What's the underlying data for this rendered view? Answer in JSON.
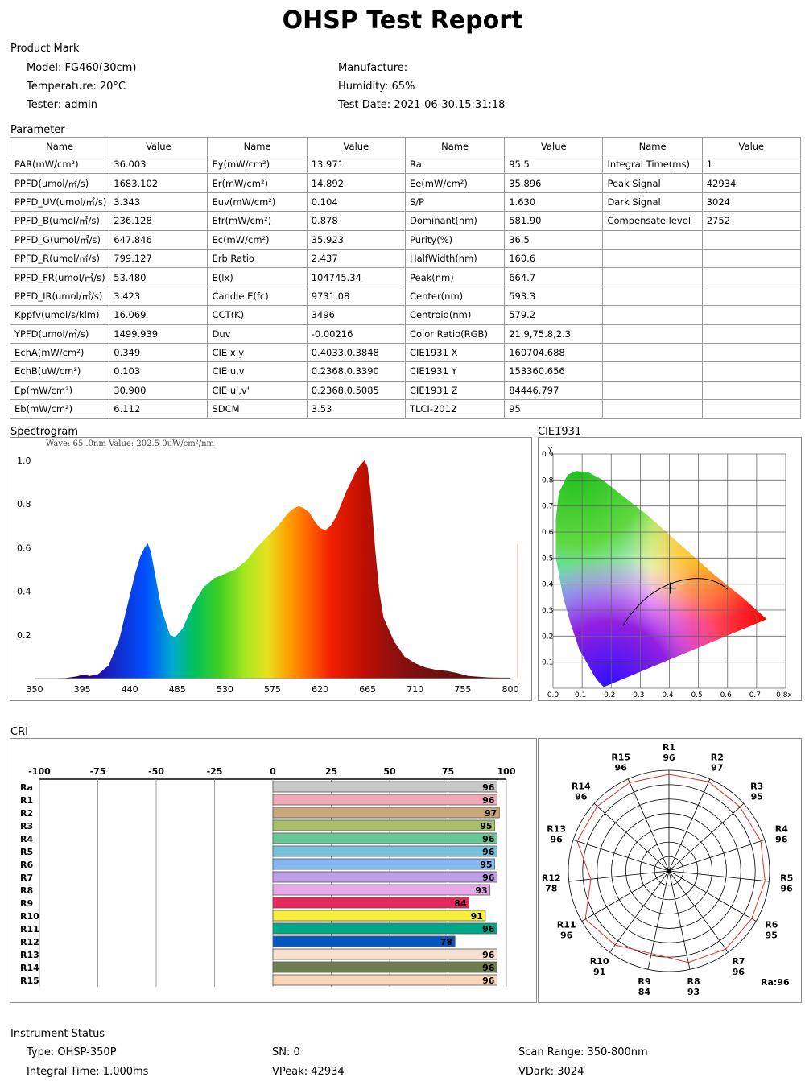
{
  "title": "OHSP Test Report",
  "product_mark": {
    "heading": "Product Mark",
    "model": "Model: FG460(30cm)",
    "manufacture": "Manufacture:",
    "temperature": "Temperature: 20°C",
    "humidity": "Humidity: 65%",
    "tester": "Tester: admin",
    "test_date": "Test Date: 2021-06-30,15:31:18"
  },
  "parameter": {
    "heading": "Parameter",
    "headers": [
      "Name",
      "Value",
      "Name",
      "Value",
      "Name",
      "Value",
      "Name",
      "Value"
    ],
    "rows": [
      [
        "PAR(mW/cm²)",
        "36.003",
        "Ey(mW/cm²)",
        "13.971",
        "Ra",
        "95.5",
        "Integral Time(ms)",
        "1"
      ],
      [
        "PPFD(umol/㎡/s)",
        "1683.102",
        "Er(mW/cm²)",
        "14.892",
        "Ee(mW/cm²)",
        "35.896",
        "Peak Signal",
        "42934"
      ],
      [
        "PPFD_UV(umol/㎡/s)",
        "3.343",
        "Euv(mW/cm²)",
        "0.104",
        "S/P",
        "1.630",
        "Dark Signal",
        "3024"
      ],
      [
        "PPFD_B(umol/㎡/s)",
        "236.128",
        "Efr(mW/cm²)",
        "0.878",
        "Dominant(nm)",
        "581.90",
        "Compensate level",
        "2752"
      ],
      [
        "PPFD_G(umol/㎡/s)",
        "647.846",
        "Ec(mW/cm²)",
        "35.923",
        "Purity(%)",
        "36.5",
        "",
        ""
      ],
      [
        "PPFD_R(umol/㎡/s)",
        "799.127",
        "Erb Ratio",
        "2.437",
        "HalfWidth(nm)",
        "160.6",
        "",
        ""
      ],
      [
        "PPFD_FR(umol/㎡/s)",
        "53.480",
        "E(lx)",
        "104745.34",
        "Peak(nm)",
        "664.7",
        "",
        ""
      ],
      [
        "PPFD_IR(umol/㎡/s)",
        "3.423",
        "Candle E(fc)",
        "9731.08",
        "Center(nm)",
        "593.3",
        "",
        ""
      ],
      [
        "Kppfv(umol/s/klm)",
        "16.069",
        "CCT(K)",
        "3496",
        "Centroid(nm)",
        "579.2",
        "",
        ""
      ],
      [
        "YPFD(umol/㎡/s)",
        "1499.939",
        "Duv",
        "-0.00216",
        "Color Ratio(RGB)",
        "21.9,75.8,2.3",
        "",
        ""
      ],
      [
        "EchA(mW/cm²)",
        "0.349",
        "CIE x,y",
        "0.4033,0.3848",
        "CIE1931 X",
        "160704.688",
        "",
        ""
      ],
      [
        "EchB(uW/cm²)",
        "0.103",
        "CIE u,v",
        "0.2368,0.3390",
        "CIE1931 Y",
        "153360.656",
        "",
        ""
      ],
      [
        "Ep(mW/cm²)",
        "30.900",
        "CIE u',v'",
        "0.2368,0.5085",
        "CIE1931 Z",
        "84446.797",
        "",
        ""
      ],
      [
        "Eb(mW/cm²)",
        "6.112",
        "SDCM",
        "3.53",
        "TLCI-2012",
        "95",
        "",
        ""
      ]
    ]
  },
  "spectrogram": {
    "heading": "Spectrogram",
    "readout": "Wave: 65 .0nm Value: 202.5 0uW/cm²/nm"
  },
  "cie": {
    "heading": "CIE1931",
    "x_axis_suffix": "x",
    "y_axis_label": "y"
  },
  "cri": {
    "heading": "CRI",
    "ra_label": "Ra:96"
  },
  "chart_data": [
    {
      "type": "area",
      "title": "Spectrogram",
      "xlabel": "",
      "ylabel": "",
      "xlim": [
        350,
        810
      ],
      "ylim": [
        0,
        1.05
      ],
      "x_ticks": [
        "350",
        "395",
        "440",
        "485",
        "530",
        "575",
        "620",
        "665",
        "710",
        "755",
        "800"
      ],
      "y_ticks": [
        "0.2",
        "0.4",
        "0.6",
        "0.8",
        "1.0"
      ],
      "x": [
        350,
        380,
        390,
        396,
        402,
        410,
        420,
        430,
        440,
        445,
        450,
        454,
        457,
        460,
        465,
        470,
        478,
        483,
        490,
        500,
        510,
        520,
        530,
        540,
        550,
        560,
        570,
        580,
        590,
        595,
        600,
        605,
        610,
        615,
        620,
        625,
        630,
        635,
        640,
        645,
        650,
        655,
        660,
        662,
        665,
        668,
        672,
        676,
        680,
        690,
        700,
        710,
        720,
        730,
        740,
        750,
        760,
        770,
        780,
        790,
        800
      ],
      "y": [
        0.0,
        0.003,
        0.01,
        0.018,
        0.012,
        0.02,
        0.06,
        0.18,
        0.38,
        0.48,
        0.56,
        0.6,
        0.62,
        0.58,
        0.45,
        0.32,
        0.2,
        0.19,
        0.23,
        0.34,
        0.42,
        0.46,
        0.48,
        0.5,
        0.54,
        0.6,
        0.65,
        0.7,
        0.76,
        0.78,
        0.79,
        0.78,
        0.76,
        0.72,
        0.69,
        0.68,
        0.7,
        0.74,
        0.8,
        0.86,
        0.91,
        0.96,
        0.99,
        1.0,
        0.97,
        0.85,
        0.6,
        0.4,
        0.28,
        0.17,
        0.1,
        0.07,
        0.05,
        0.04,
        0.035,
        0.025,
        0.012,
        0.008,
        0.005,
        0.004,
        0.004
      ],
      "grid": false
    },
    {
      "type": "bar",
      "title": "CRI",
      "categories": [
        "Ra",
        "R1",
        "R2",
        "R3",
        "R4",
        "R5",
        "R6",
        "R7",
        "R8",
        "R9",
        "R10",
        "R11",
        "R12",
        "R13",
        "R14",
        "R15"
      ],
      "values": [
        96,
        96,
        97,
        95,
        96,
        96,
        95,
        96,
        93,
        84,
        91,
        96,
        78,
        96,
        96,
        96
      ],
      "colors": [
        "#c8c8c8",
        "#f0a8b8",
        "#c8a878",
        "#a8c068",
        "#68c898",
        "#78c0d8",
        "#88b8f0",
        "#c0a0e8",
        "#e8a8e8",
        "#e8285a",
        "#f8f038",
        "#00a888",
        "#0058c0",
        "#f8e0d0",
        "#6e7c50",
        "#f8d8b8"
      ],
      "xlim": [
        -100,
        100
      ],
      "x_ticks": [
        "-100",
        "-75",
        "-50",
        "-25",
        "0",
        "25",
        "50",
        "75",
        "100"
      ]
    },
    {
      "type": "scatter",
      "title": "CIE1931",
      "xlim": [
        0,
        0.8
      ],
      "ylim": [
        0,
        0.9
      ],
      "x_ticks": [
        "0.0",
        "0.1",
        "0.2",
        "0.3",
        "0.4",
        "0.5",
        "0.6",
        "0.7",
        "0.8x"
      ],
      "y_ticks": [
        "0.1",
        "0.2",
        "0.3",
        "0.4",
        "0.5",
        "0.6",
        "0.7",
        "0.8",
        "0.9"
      ],
      "point": {
        "x": 0.4033,
        "y": 0.3848
      }
    }
  ],
  "instrument": {
    "heading": "Instrument Status",
    "type": "Type: OHSP-350P",
    "sn": "SN: 0",
    "scan_range": "Scan Range: 350-800nm",
    "integral_time": "Integral Time: 1.000ms",
    "vpeak": "VPeak: 42934",
    "vdark": "VDark: 3024"
  }
}
